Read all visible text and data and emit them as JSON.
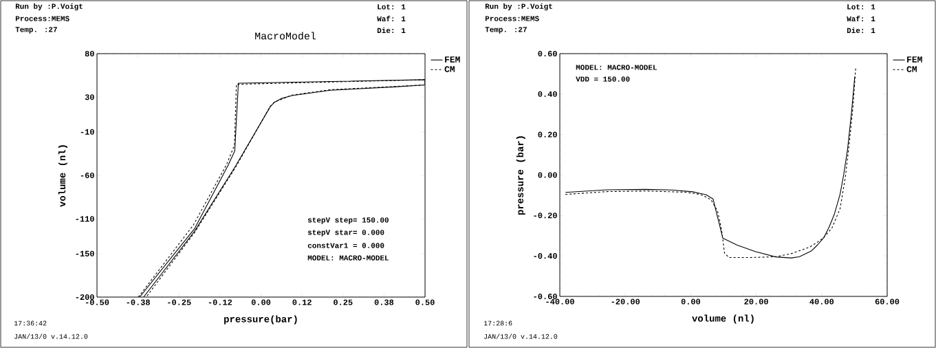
{
  "chart_data": [
    {
      "type": "line",
      "title": "MacroModel",
      "xlabel": "pressure(bar)",
      "ylabel": "volume (nl)",
      "xlim": [
        -0.5,
        0.5
      ],
      "xticks": [
        {
          "value": -0.5,
          "label": "-0.50"
        },
        {
          "value": -0.375,
          "label": "-0.38"
        },
        {
          "value": -0.25,
          "label": "-0.25"
        },
        {
          "value": -0.125,
          "label": "-0.12"
        },
        {
          "value": 0,
          "label": "0.00"
        },
        {
          "value": 0.125,
          "label": "0.12"
        },
        {
          "value": 0.25,
          "label": "0.25"
        },
        {
          "value": 0.375,
          "label": "0.38"
        },
        {
          "value": 0.5,
          "label": "0.50"
        }
      ],
      "ylim": [
        -200,
        80
      ],
      "yticks": [
        -200,
        -150,
        -110,
        -60,
        -10,
        30,
        80
      ],
      "legend": "top right",
      "marker": "none",
      "annotations": [
        "Run by :P.Voigt",
        "Process:MEMS",
        "Temp.  :27",
        "Lot: 1",
        "Waf: 1",
        "Die: 1",
        "17:36:42",
        "JAN/13/0  v.14.12.0",
        "stepV step= 150.00",
        "stepV star= 0.000",
        "constVar1 = 0.000",
        "MODEL: MACRO-MODEL"
      ],
      "series": [
        {
          "name": "FEM",
          "color": "#000000",
          "line_style": "solid",
          "x": [
            -0.37,
            -0.202,
            -0.101,
            -0.08,
            -0.069,
            0.5,
            0.5,
            0.406,
            0.211,
            0.094,
            0.063,
            0.04,
            0.028,
            -0.077,
            -0.202,
            -0.358
          ],
          "values": [
            -200,
            -121,
            -49,
            -32,
            46,
            50,
            44,
            41.7,
            37.9,
            31.7,
            28.5,
            23.8,
            18.8,
            -49,
            -124,
            -200
          ]
        },
        {
          "name": "CM",
          "color": "#000000",
          "line_style": "dashed",
          "x": [
            -0.374,
            -0.206,
            -0.105,
            -0.081,
            -0.075,
            0.5,
            0.5,
            0.211,
            0.094,
            0.04,
            0.028,
            -0.077,
            -0.202,
            -0.35
          ],
          "values": [
            -200,
            -117,
            -47.5,
            -25.4,
            44.7,
            50,
            44,
            38.5,
            32.3,
            24,
            19.3,
            -50.4,
            -125.5,
            -200
          ]
        }
      ]
    },
    {
      "type": "line",
      "xlabel": "volume (nl)",
      "ylabel": "pressure (bar)",
      "xlim": [
        -40,
        60
      ],
      "xticks": [
        {
          "value": -40,
          "label": "-40.00"
        },
        {
          "value": -20,
          "label": "-20.00"
        },
        {
          "value": 0,
          "label": "0.00"
        },
        {
          "value": 20,
          "label": "20.00"
        },
        {
          "value": 40,
          "label": "40.00"
        },
        {
          "value": 60,
          "label": "60.00"
        }
      ],
      "ylim": [
        -0.6,
        0.6
      ],
      "yticks": [
        {
          "value": -0.6,
          "label": "-0.60"
        },
        {
          "value": -0.4,
          "label": "-0.40"
        },
        {
          "value": -0.2,
          "label": "-0.20"
        },
        {
          "value": 0,
          "label": "0.00"
        },
        {
          "value": 0.2,
          "label": "0.20"
        },
        {
          "value": 0.4,
          "label": "0.40"
        },
        {
          "value": 0.6,
          "label": "0.60"
        }
      ],
      "legend": "top right",
      "marker": "none",
      "annotations": [
        "Run by :P.Voigt",
        "Process:MEMS",
        "Temp.  :27",
        "Lot: 1",
        "Waf: 1",
        "Die: 1",
        "17:28:6",
        "JAN/13/0  v.14.12.0",
        "MODEL: MACRO-MODEL",
        "VDD        = 150.00"
      ],
      "series": [
        {
          "name": "FEM",
          "color": "#000000",
          "line_style": "solid",
          "x": [
            -38.3,
            -25.6,
            -13.7,
            -5.7,
            0.6,
            4.6,
            6.8,
            9.8,
            14.1,
            19.7,
            26.0,
            30.8,
            33.2,
            36.8,
            38.7,
            40.7,
            42.3,
            43.9,
            45.6,
            46.7,
            47.9,
            49.1,
            50.1
          ],
          "values": [
            -0.086,
            -0.073,
            -0.071,
            -0.074,
            -0.083,
            -0.097,
            -0.118,
            -0.312,
            -0.346,
            -0.378,
            -0.405,
            -0.41,
            -0.404,
            -0.376,
            -0.346,
            -0.308,
            -0.256,
            -0.192,
            -0.096,
            0.0,
            0.128,
            0.308,
            0.487
          ]
        },
        {
          "name": "CM",
          "color": "#000000",
          "line_style": "dashed",
          "x": [
            -38.3,
            -25.6,
            -13.7,
            -1.7,
            3.0,
            6.2,
            8.2,
            9.4,
            10.3,
            11.7,
            18.1,
            26.0,
            30.8,
            36.4,
            40.3,
            43.1,
            45.6,
            47.2,
            48.4,
            49.6,
            50.4
          ],
          "values": [
            -0.096,
            -0.082,
            -0.079,
            -0.085,
            -0.096,
            -0.122,
            -0.179,
            -0.269,
            -0.385,
            -0.408,
            -0.408,
            -0.404,
            -0.388,
            -0.356,
            -0.314,
            -0.263,
            -0.167,
            -0.013,
            0.154,
            0.346,
            0.532
          ]
        }
      ]
    }
  ]
}
